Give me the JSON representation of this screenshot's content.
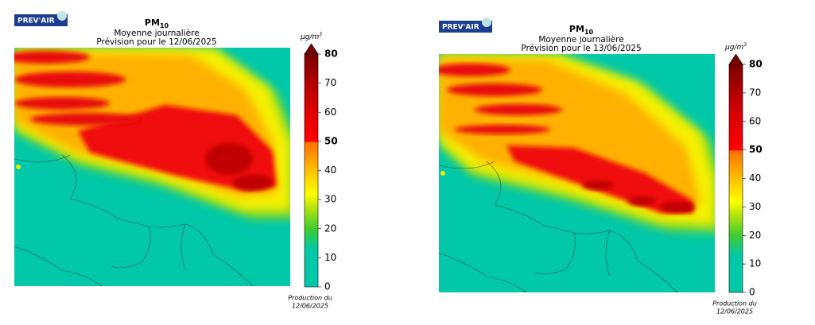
{
  "panels": [
    {
      "logo": "PREV'AIR",
      "title": "PM",
      "title_sub": "10",
      "subtitle": "Moyenne journalière",
      "forecast": "Prévision pour le 12/06/2025",
      "unit": "µg/m",
      "unit_sup": "3",
      "colorbar_ticks": [
        "0",
        "10",
        "20",
        "30",
        "40",
        "50",
        "60",
        "70",
        "80"
      ],
      "production": "Production du",
      "production_date": "12/06/2025"
    },
    {
      "logo": "PREV'AIR",
      "title": "PM",
      "title_sub": "10",
      "subtitle": "Moyenne journalière",
      "forecast": "Prévision pour le 13/06/2025",
      "unit": "µg/m",
      "unit_sup": "3",
      "colorbar_ticks": [
        "0",
        "10",
        "20",
        "30",
        "40",
        "50",
        "60",
        "70",
        "80"
      ],
      "production": "Production du",
      "production_date": "12/06/2025"
    }
  ]
}
